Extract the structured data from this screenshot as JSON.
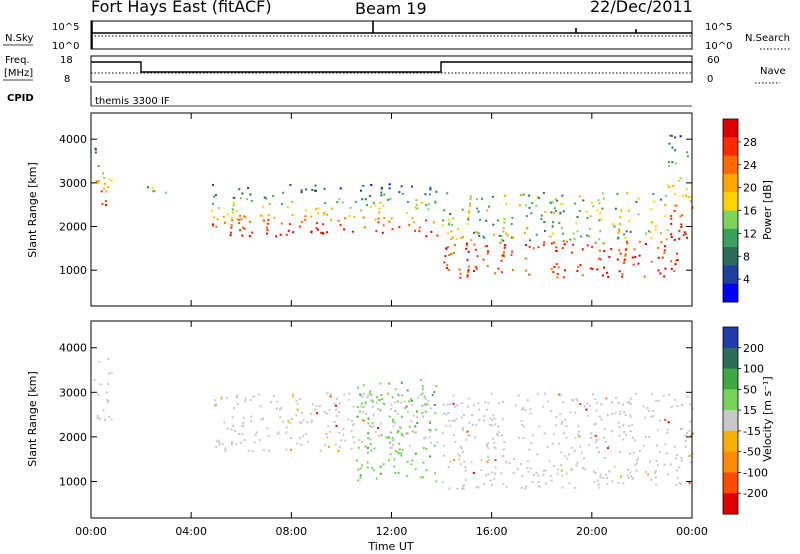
{
  "header": {
    "station": "Fort Hays East (fitACF)",
    "beam": "Beam 19",
    "date": "22/Dec/2011"
  },
  "top_panels": {
    "nsky_label": "N.Sky",
    "nsky_tick_top": "10^5",
    "nsky_tick_bottom": "10^0",
    "nsearch_label": "N.Search",
    "nsearch_tick_top": "10^5",
    "nsearch_tick_bottom": "10^0",
    "freq_label_1": "Freq.",
    "freq_label_2": "[MHz]",
    "freq_tick_top": "18",
    "freq_tick_bottom": "8",
    "nave_label": "Nave",
    "nave_tick_top": "60",
    "nave_tick_bottom": "0",
    "cpid_label": "CPID",
    "cpid_text": "themis 3300 IF"
  },
  "colors": {
    "power": [
      "#0000ff",
      "#1f3f9f",
      "#2e6b5a",
      "#39a05a",
      "#7fd35a",
      "#ffd400",
      "#ffa500",
      "#ff6a00",
      "#ff2a00",
      "#e00000"
    ],
    "velocity": [
      "#1e3da8",
      "#2e6b5a",
      "#3ea845",
      "#76d35a",
      "#c8c8c8",
      "#f5b000",
      "#ff8c00",
      "#ff4a00",
      "#e00000"
    ]
  },
  "chart_data": [
    {
      "type": "heatmap",
      "title": "",
      "ylabel": "Slant Range [km]",
      "xlabel": "",
      "xlim_hours": [
        0,
        24
      ],
      "ylim_km": [
        180,
        4600
      ],
      "yticks": [
        "1000",
        "2000",
        "3000",
        "4000"
      ],
      "xticks": [
        "00:00",
        "04:00",
        "08:00",
        "12:00",
        "16:00",
        "20:00",
        "00:00"
      ],
      "colorbar": {
        "label": "Power [dB]",
        "ticks": [
          "28",
          "24",
          "20",
          "16",
          "12",
          "8",
          "4"
        ]
      },
      "scatter_bands": [
        {
          "t0": 0.1,
          "t1": 0.8,
          "r0": 2400,
          "r1": 3900,
          "level": "high"
        },
        {
          "t0": 2.0,
          "t1": 3.0,
          "r0": 2700,
          "r1": 3000,
          "level": "mid"
        },
        {
          "t0": 4.8,
          "t1": 13.8,
          "r0": 1800,
          "r1": 3000,
          "level": "high"
        },
        {
          "t0": 14.0,
          "t1": 23.5,
          "r0": 850,
          "r1": 1700,
          "level": "very_high"
        },
        {
          "t0": 14.0,
          "t1": 23.0,
          "r0": 1700,
          "r1": 2800,
          "level": "mid"
        },
        {
          "t0": 23.0,
          "t1": 24.0,
          "r0": 1700,
          "r1": 4200,
          "level": "high"
        }
      ]
    },
    {
      "type": "heatmap",
      "title": "",
      "ylabel": "Slant Range [km]",
      "xlabel": "Time UT",
      "xlim_hours": [
        0,
        24
      ],
      "ylim_km": [
        180,
        4600
      ],
      "yticks": [
        "1000",
        "2000",
        "3000",
        "4000"
      ],
      "xticks": [
        "00:00",
        "04:00",
        "08:00",
        "12:00",
        "16:00",
        "20:00",
        "00:00"
      ],
      "colorbar": {
        "label": "Velocity [m s⁻¹]",
        "ticks": [
          "200",
          "100",
          "50",
          "15",
          "-15",
          "-50",
          "-100",
          "-200"
        ]
      },
      "scatter_bands": [
        {
          "t0": 0.1,
          "t1": 0.8,
          "r0": 2400,
          "r1": 3900,
          "level": "ground"
        },
        {
          "t0": 4.8,
          "t1": 13.8,
          "r0": 1700,
          "r1": 3000,
          "level": "ground"
        },
        {
          "t0": 10.5,
          "t1": 13.8,
          "r0": 1000,
          "r1": 3300,
          "level": "positive"
        },
        {
          "t0": 14.0,
          "t1": 24.0,
          "r0": 850,
          "r1": 3000,
          "level": "ground"
        }
      ]
    }
  ]
}
